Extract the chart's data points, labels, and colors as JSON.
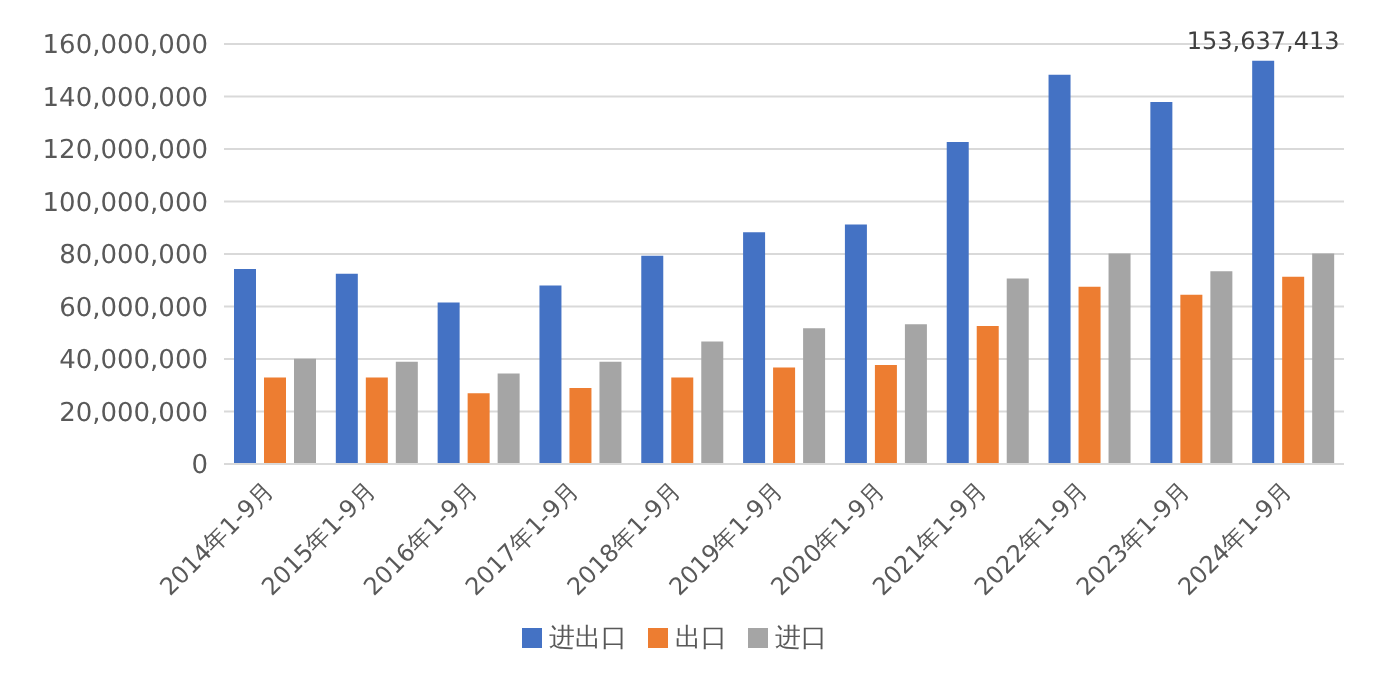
{
  "chart_data": {
    "type": "bar",
    "categories": [
      "2014年1-9月",
      "2015年1-9月",
      "2016年1-9月",
      "2017年1-9月",
      "2018年1-9月",
      "2019年1-9月",
      "2020年1-9月",
      "2021年1-9月",
      "2022年1-9月",
      "2023年1-9月",
      "2024年1-9月"
    ],
    "series": [
      {
        "name": "进出口",
        "color": "#4472c4",
        "values": [
          74300000,
          72500000,
          61500000,
          68000000,
          79300000,
          88300000,
          91200000,
          122700000,
          148300000,
          137900000,
          153637413
        ],
        "value_labels": [
          null,
          null,
          null,
          null,
          null,
          null,
          null,
          null,
          null,
          null,
          "153,637,413"
        ]
      },
      {
        "name": "出口",
        "color": "#ed7d31",
        "values": [
          33000000,
          33000000,
          27000000,
          29000000,
          33000000,
          36800000,
          37700000,
          52600000,
          67500000,
          64500000,
          71300000
        ]
      },
      {
        "name": "进口",
        "color": "#a5a5a5",
        "values": [
          40100000,
          39000000,
          34500000,
          39000000,
          46700000,
          51700000,
          53200000,
          70700000,
          80200000,
          73400000,
          80200000
        ]
      }
    ],
    "ylim": [
      0,
      160000000
    ],
    "yticks": [
      0,
      {
        "value": 20000000,
        "label": "20,000,000"
      },
      {
        "value": 40000000,
        "label": "40,000,000"
      },
      {
        "value": 60000000,
        "label": "60,000,000"
      },
      {
        "value": 80000000,
        "label": "80,000,000"
      },
      {
        "value": 100000000,
        "label": "100,000,000"
      },
      {
        "value": 120000000,
        "label": "120,000,000"
      },
      {
        "value": 140000000,
        "label": "140,000,000"
      },
      {
        "value": 160000000,
        "label": "160,000,000"
      }
    ],
    "grid": "y",
    "legend": "bottom"
  }
}
